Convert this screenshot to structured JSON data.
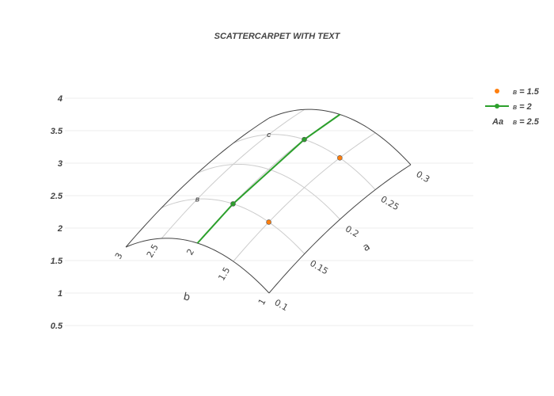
{
  "chart_data": {
    "type": "scatter",
    "title": "SCATTERCARPET WITH TEXT",
    "y_axis": {
      "ticks": [
        "0.5",
        "1",
        "1.5",
        "2",
        "2.5",
        "3",
        "3.5",
        "4"
      ],
      "grid": true
    },
    "carpet": {
      "a_axis": {
        "title": "a",
        "ticks": [
          "0.1",
          "0.15",
          "0.2",
          "0.25",
          "0.3"
        ]
      },
      "b_axis": {
        "title": "b",
        "ticks": [
          "1",
          "1.5",
          "2",
          "2.5",
          "3"
        ]
      }
    },
    "series": [
      {
        "name": "B = 1.5",
        "legend_prefix": "B",
        "legend_value": " = 1.5",
        "mode": "markers",
        "color": "#ff7f0e",
        "a": [
          0.15,
          0.25
        ],
        "b": [
          1.5,
          1.5
        ]
      },
      {
        "name": "B = 2",
        "legend_prefix": "B",
        "legend_value": " = 2",
        "mode": "lines+markers",
        "color": "#2ca02c",
        "a": [
          0.1,
          0.15,
          0.25,
          0.3
        ],
        "b": [
          2,
          2,
          2,
          2
        ]
      },
      {
        "name": "B = 2.5",
        "legend_prefix": "B",
        "legend_value": " = 2.5",
        "mode": "text",
        "color": "#444444",
        "legend_icon_text": "Aa",
        "a": [
          0.15,
          0.25
        ],
        "b": [
          2.5,
          2.5
        ],
        "text": [
          "B",
          "C"
        ]
      }
    ],
    "legend_position": "top-right"
  }
}
